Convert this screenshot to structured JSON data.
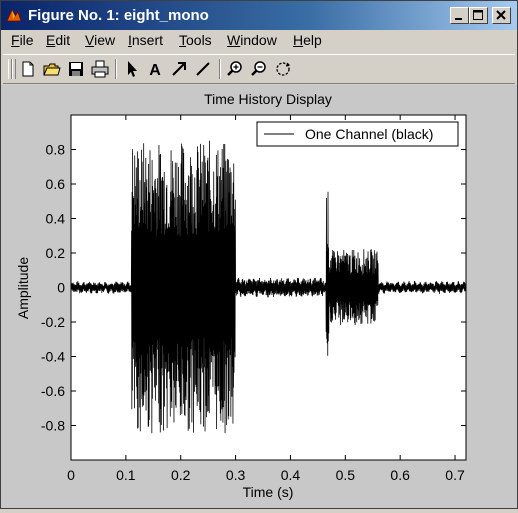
{
  "window": {
    "title": "Figure No. 1: eight_mono",
    "icon": "matlab-figure-icon",
    "controls": [
      "minimize-icon",
      "maximize-icon",
      "close-icon"
    ]
  },
  "menu": {
    "items": [
      {
        "label": "File",
        "mnemonic": "F",
        "rest": "ile"
      },
      {
        "label": "Edit",
        "mnemonic": "E",
        "rest": "dit"
      },
      {
        "label": "View",
        "mnemonic": "V",
        "rest": "iew"
      },
      {
        "label": "Insert",
        "mnemonic": "I",
        "rest": "nsert"
      },
      {
        "label": "Tools",
        "mnemonic": "T",
        "rest": "ools"
      },
      {
        "label": "Window",
        "mnemonic": "W",
        "rest": "indow"
      },
      {
        "label": "Help",
        "mnemonic": "H",
        "rest": "elp"
      }
    ]
  },
  "toolbar": {
    "buttons": [
      "new-file-icon",
      "open-folder-icon",
      "save-icon",
      "print-icon",
      "select-arrow-icon",
      "insert-text-icon",
      "insert-arrow-icon",
      "insert-line-icon",
      "zoom-in-icon",
      "zoom-out-icon",
      "rotate-3d-icon"
    ],
    "text_tool_glyph": "A"
  },
  "chart_data": {
    "type": "line",
    "title": "Time History Display",
    "xlabel": "Time (s)",
    "ylabel": "Amplitude",
    "xlim": [
      0,
      0.72
    ],
    "ylim": [
      -1,
      1
    ],
    "xticks": [
      0,
      0.1,
      0.2,
      0.3,
      0.4,
      0.5,
      0.6,
      0.7
    ],
    "xtick_labels": [
      "0",
      "0.1",
      "0.2",
      "0.3",
      "0.4",
      "0.5",
      "0.6",
      "0.7"
    ],
    "yticks": [
      0.8,
      0.6,
      0.4,
      0.2,
      0,
      -0.2,
      -0.4,
      -0.6,
      -0.8
    ],
    "ytick_labels": [
      "0.8",
      "0.6",
      "0.4",
      "0.2",
      "0",
      "-0.2",
      "-0.4",
      "-0.6",
      "-0.8"
    ],
    "grid": false,
    "legend_position": "top-right",
    "background": "#ffffff",
    "figure_background": "#c8c8c8",
    "series": [
      {
        "name": "One Channel (black)",
        "color": "#000000",
        "envelope_segments": [
          {
            "start": 0.0,
            "end": 0.11,
            "amplitude": 0.03
          },
          {
            "start": 0.11,
            "end": 0.3,
            "amplitude": 0.85
          },
          {
            "start": 0.3,
            "end": 0.46,
            "amplitude": 0.05
          },
          {
            "start": 0.465,
            "end": 0.47,
            "amplitude": 0.57
          },
          {
            "start": 0.47,
            "end": 0.56,
            "amplitude": 0.22
          },
          {
            "start": 0.56,
            "end": 0.72,
            "amplitude": 0.03
          }
        ]
      }
    ]
  }
}
